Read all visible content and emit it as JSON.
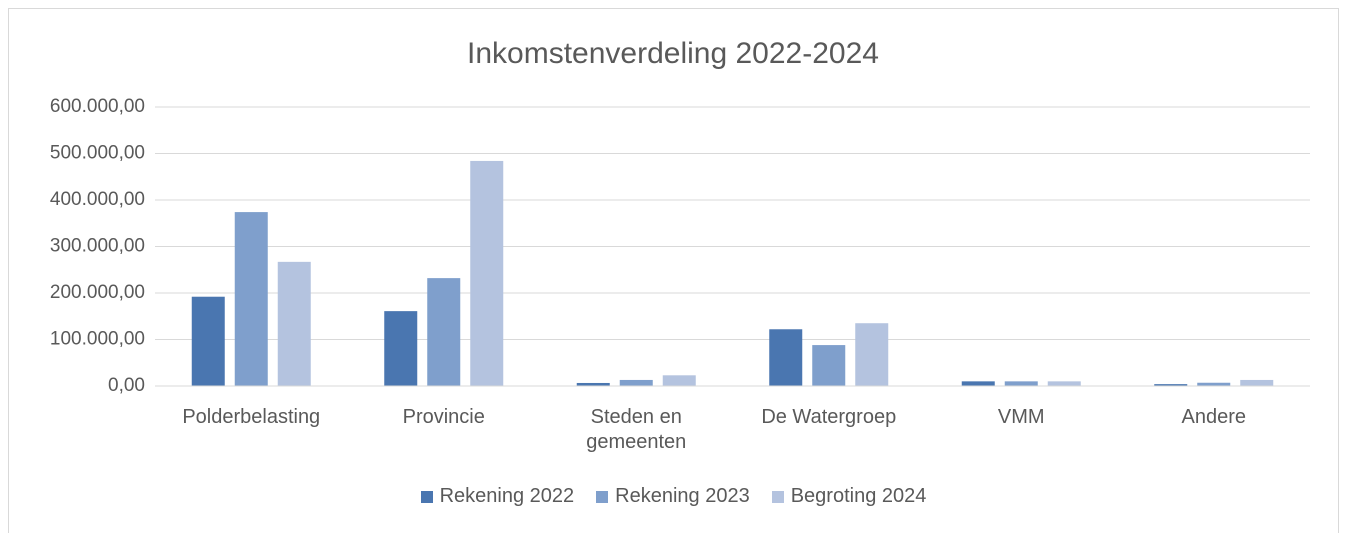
{
  "chart_data": {
    "type": "bar",
    "title": "Inkomstenverdeling 2022-2024",
    "categories": [
      "Polderbelasting",
      "Provincie",
      "Steden en gemeenten",
      "De Watergroep",
      "VMM",
      "Andere"
    ],
    "series": [
      {
        "name": "Rekening 2022",
        "color": "#4a76b0",
        "values": [
          192000,
          161000,
          6500,
          122000,
          10000,
          4000
        ]
      },
      {
        "name": "Rekening 2023",
        "color": "#7f9fcc",
        "values": [
          374000,
          232000,
          13000,
          88000,
          10000,
          7000
        ]
      },
      {
        "name": "Begroting 2024",
        "color": "#b4c3df",
        "values": [
          267000,
          484000,
          23000,
          135000,
          10000,
          13000
        ]
      }
    ],
    "ylim": [
      0,
      600000
    ],
    "yticks": [
      {
        "value": 0,
        "label": "0,00"
      },
      {
        "value": 100000,
        "label": "100.000,00"
      },
      {
        "value": 200000,
        "label": "200.000,00"
      },
      {
        "value": 300000,
        "label": "300.000,00"
      },
      {
        "value": 400000,
        "label": "400.000,00"
      },
      {
        "value": 500000,
        "label": "500.000,00"
      },
      {
        "value": 600000,
        "label": "600.000,00"
      }
    ],
    "grid": true,
    "legend": "bottom"
  }
}
